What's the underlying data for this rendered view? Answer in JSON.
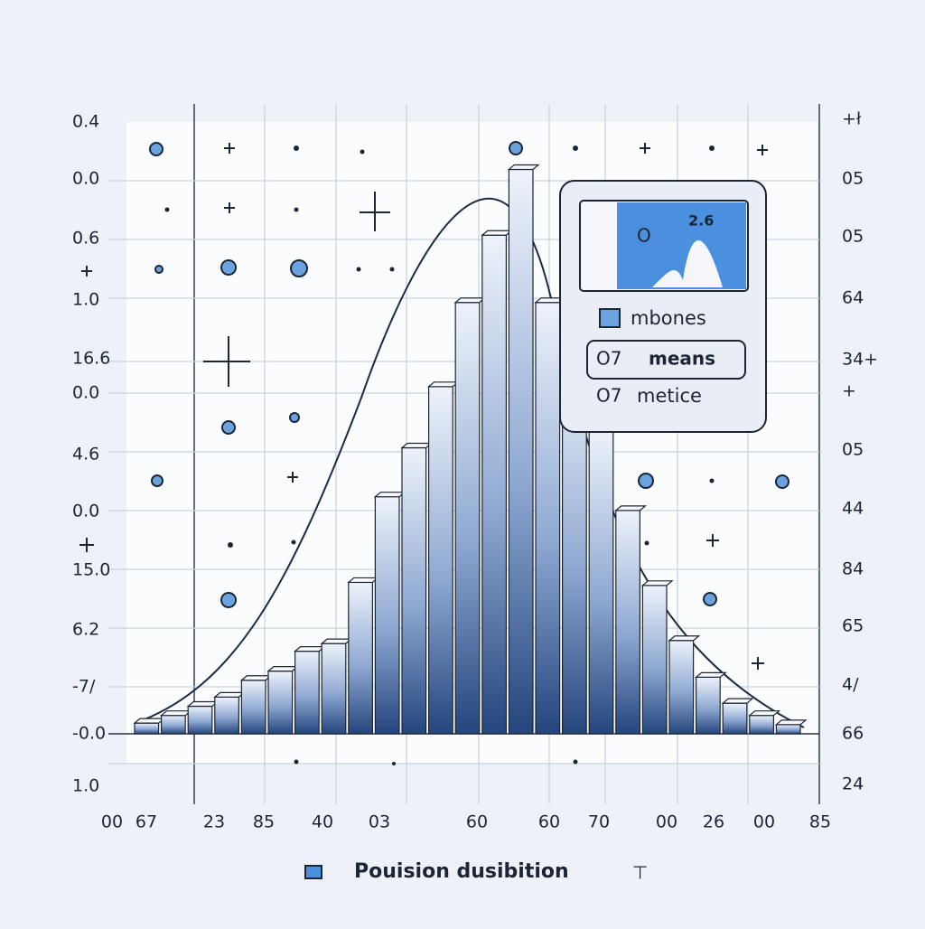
{
  "chart_data": {
    "type": "bar",
    "ylim": [
      0,
      0.4
    ],
    "values": [
      0.007,
      0.012,
      0.018,
      0.024,
      0.035,
      0.041,
      0.054,
      0.059,
      0.099,
      0.155,
      0.187,
      0.227,
      0.282,
      0.326,
      0.369,
      0.282,
      0.243,
      0.199,
      0.146,
      0.097,
      0.061,
      0.037,
      0.02,
      0.012,
      0.006
    ],
    "color": "#2f5590",
    "left_labels": [
      "0.4",
      "0.0",
      "0.6",
      "1.0",
      "16.6",
      "0.0",
      "4.6",
      "0.0",
      "15.0",
      "6.2",
      "-7/",
      "-0.0",
      "1.0"
    ],
    "right_labels": [
      "+ł",
      "05",
      "05",
      "64",
      "34+",
      "+",
      "05",
      "44",
      "84",
      "65",
      "4/",
      "66",
      "24"
    ],
    "x_labels": [
      "00",
      "67",
      "23",
      "85",
      "40",
      "03",
      "60",
      "60",
      "70",
      "00",
      "26",
      "00",
      "85"
    ],
    "tooltip": {
      "value": "2.6",
      "items": [
        "mbones",
        "means",
        "metice"
      ],
      "prefix": "O7"
    },
    "legend": {
      "label": "Pouision dusibition",
      "mark": "⊤"
    }
  }
}
